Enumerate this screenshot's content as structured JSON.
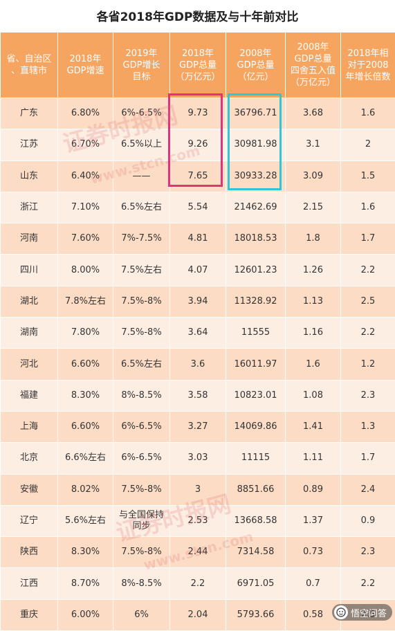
{
  "title": "各省2018年GDP数据及与十年前对比",
  "headers": [
    "省、自治区\n、直辖市",
    "2018年\nGDP增速",
    "2019年\nGDP增长\n目标",
    "2018年\nGDP总量\n（万亿元）",
    "2008年\nGDP总量\n（亿元）",
    "2008年\nGDP总量\n四舍五入值\n（万亿元）",
    "2018年相\n对于2008\n年增长倍数"
  ],
  "rows": [
    [
      "广东",
      "6.80%",
      "6%-6.5%",
      "9.73",
      "36796.71",
      "3.68",
      "1.6"
    ],
    [
      "江苏",
      "6.70%",
      "6.5%以上",
      "9.26",
      "30981.98",
      "3.1",
      "2"
    ],
    [
      "山东",
      "6.40%",
      "——",
      "7.65",
      "30933.28",
      "3.09",
      "1.5"
    ],
    [
      "浙江",
      "7.10%",
      "6.5%左右",
      "5.54",
      "21462.69",
      "2.15",
      "1.6"
    ],
    [
      "河南",
      "7.60%",
      "7%-7.5%",
      "4.81",
      "18018.53",
      "1.8",
      "1.7"
    ],
    [
      "四川",
      "8.00%",
      "7.5%左右",
      "4.07",
      "12601.23",
      "1.26",
      "2.2"
    ],
    [
      "湖北",
      "7.8%左右",
      "7.5%-8%",
      "3.94",
      "11328.92",
      "1.13",
      "2.5"
    ],
    [
      "湖南",
      "7.80%",
      "7.5%-8%",
      "3.64",
      "11555",
      "1.16",
      "2.2"
    ],
    [
      "河北",
      "6.60%",
      "6.5%左右",
      "3.6",
      "16011.97",
      "1.6",
      "1.2"
    ],
    [
      "福建",
      "8.30%",
      "8%-8.5%",
      "3.58",
      "10823.01",
      "1.08",
      "2.3"
    ],
    [
      "上海",
      "6.60%",
      "6%-6.5%",
      "3.27",
      "14069.86",
      "1.41",
      "1.3"
    ],
    [
      "北京",
      "6.6%左右",
      "6%-6.5%",
      "3.03",
      "11115",
      "1.11",
      "1.7"
    ],
    [
      "安徽",
      "8.02%",
      "7.5%-8%",
      "3",
      "8851.66",
      "0.89",
      "2.4"
    ],
    [
      "辽宁",
      "5.6%左右",
      "与全国保持\n同步",
      "2.53",
      "13668.58",
      "1.37",
      "0.9"
    ],
    [
      "陕西",
      "8.30%",
      "7.5%-8%",
      "2.44",
      "7314.58",
      "0.73",
      "2.3"
    ],
    [
      "江西",
      "8.70%",
      "8%-8.5%",
      "2.2",
      "6971.05",
      "0.7",
      "2.2"
    ],
    [
      "重庆",
      "6.00%",
      "6%",
      "2.04",
      "5793.66",
      "0.58",
      "2.5"
    ]
  ],
  "watermark": {
    "cn": "证券时报网",
    "url": "www.stcn.com"
  },
  "source_badge": "悟空问答",
  "colors": {
    "header_bg": "#f6a560",
    "row_dark": "#fcdcc4",
    "row_light": "#fdeee3",
    "highlight_pink": "#e6317a",
    "highlight_cyan": "#2fc6d6"
  }
}
